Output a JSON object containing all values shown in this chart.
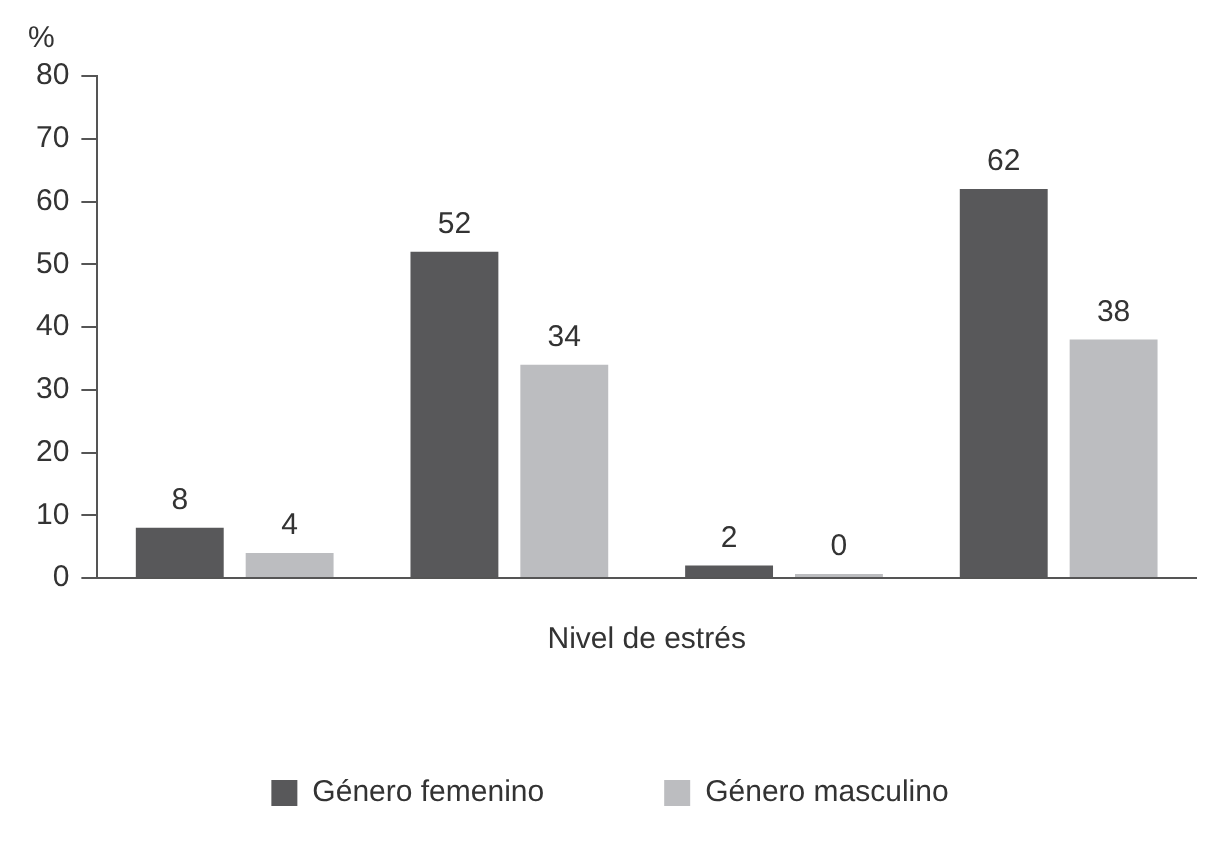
{
  "chart_data": {
    "type": "bar",
    "ylabel": "%",
    "xlabel": "Nivel de estrés",
    "categories": [
      null,
      null,
      null,
      null
    ],
    "series": [
      {
        "name": "Género femenino",
        "color": "#58585a",
        "values": [
          8,
          52,
          2,
          62
        ]
      },
      {
        "name": "Género masculino",
        "color": "#bcbdc0",
        "values": [
          4,
          34,
          0,
          38
        ]
      }
    ],
    "ylim": [
      0,
      80
    ],
    "yticks": [
      0,
      10,
      20,
      30,
      40,
      50,
      60,
      70,
      80
    ],
    "grid": false,
    "data_labels": true,
    "legend": "bottom"
  }
}
